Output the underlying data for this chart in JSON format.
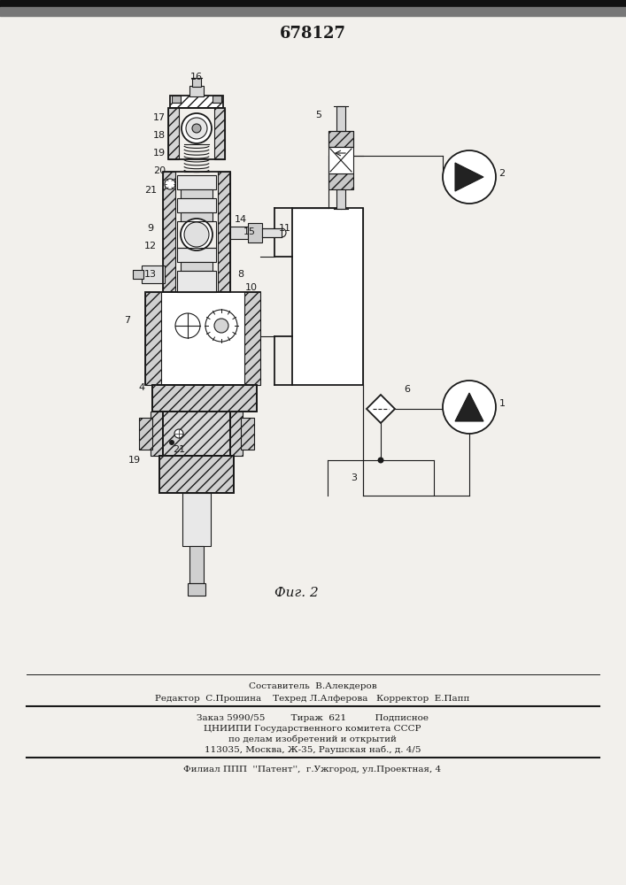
{
  "patent_number": "678127",
  "fig_label": "Фиг. 2",
  "bg_color": "#f2f0ec",
  "text_color": "#1a1a1a",
  "footer_line1": "Составитель  В.Алекдеров",
  "footer_line2": "Редактор  С.Прошина    Техред Л.Алферова   Корректор  Е.Папп",
  "footer_line3": "Заказ 5990/55         Тираж  621          Подписное",
  "footer_line4": "ЦНИИПИ Государственного комитета СССР",
  "footer_line5": "по делам изобретений и открытий",
  "footer_line6": "113035, Москва, Ж-35, Раушская наб., д. 4/5",
  "footer_line7": "Филиал ППП  ''Патент'',  г.Ужгород, ул.Проектная, 4"
}
